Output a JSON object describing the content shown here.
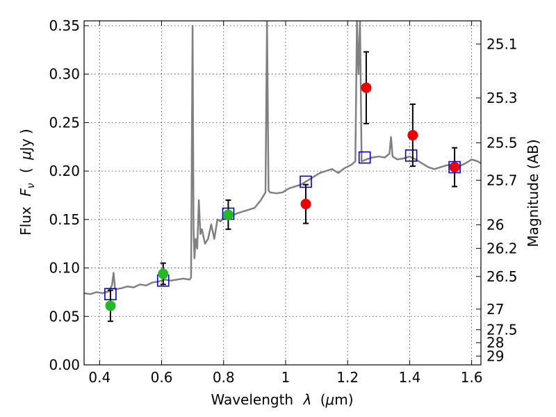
{
  "chart_data": {
    "type": "scatter",
    "xlabel": "Wavelength",
    "xlabel_lambda": "λ",
    "xlabel_unit_open": "(",
    "xlabel_unit_mu": "μ",
    "xlabel_unit_close": "m)",
    "ylabel": "Flux",
    "ylabel_sym": "F",
    "ylabel_sub": "ν",
    "ylabel_unit_open": "(",
    "ylabel_unit_mu": "μ",
    "ylabel_unit_close": "Jy )",
    "y2label": "Magnitude (AB)",
    "xlim": [
      0.35,
      1.63
    ],
    "ylim": [
      0.0,
      0.355
    ],
    "grid": true,
    "x_ticks": [
      {
        "value": 0.4,
        "label": "0.4"
      },
      {
        "value": 0.6,
        "label": "0.6"
      },
      {
        "value": 0.8,
        "label": "0.8"
      },
      {
        "value": 1.0,
        "label": "1"
      },
      {
        "value": 1.2,
        "label": "1.2"
      },
      {
        "value": 1.4,
        "label": "1.4"
      },
      {
        "value": 1.6,
        "label": "1.6"
      }
    ],
    "y_ticks": [
      {
        "value": 0.0,
        "label": "0.00"
      },
      {
        "value": 0.05,
        "label": "0.05"
      },
      {
        "value": 0.1,
        "label": "0.10"
      },
      {
        "value": 0.15,
        "label": "0.15"
      },
      {
        "value": 0.2,
        "label": "0.20"
      },
      {
        "value": 0.25,
        "label": "0.25"
      },
      {
        "value": 0.3,
        "label": "0.30"
      },
      {
        "value": 0.35,
        "label": "0.35"
      }
    ],
    "y2_ticks": [
      {
        "label": "25.1",
        "mag": 25.1
      },
      {
        "label": "25.3",
        "mag": 25.3
      },
      {
        "label": "25.5",
        "mag": 25.5
      },
      {
        "label": "25.7",
        "mag": 25.7
      },
      {
        "label": "26",
        "mag": 26.0
      },
      {
        "label": "26.2",
        "mag": 26.2
      },
      {
        "label": "26.5",
        "mag": 26.5
      },
      {
        "label": "27",
        "mag": 27.0
      },
      {
        "label": "27.5",
        "mag": 27.5
      },
      {
        "label": "28",
        "mag": 28.0
      },
      {
        "label": "29",
        "mag": 29.0
      }
    ],
    "series": [
      {
        "kind": "spectrum",
        "color": "#808080",
        "points": [
          [
            0.35,
            0.074
          ],
          [
            0.37,
            0.073
          ],
          [
            0.39,
            0.075
          ],
          [
            0.41,
            0.074
          ],
          [
            0.43,
            0.076
          ],
          [
            0.44,
            0.082
          ],
          [
            0.445,
            0.095
          ],
          [
            0.45,
            0.078
          ],
          [
            0.47,
            0.079
          ],
          [
            0.49,
            0.081
          ],
          [
            0.51,
            0.08
          ],
          [
            0.53,
            0.083
          ],
          [
            0.55,
            0.082
          ],
          [
            0.57,
            0.085
          ],
          [
            0.59,
            0.086
          ],
          [
            0.61,
            0.088
          ],
          [
            0.63,
            0.087
          ],
          [
            0.65,
            0.088
          ],
          [
            0.67,
            0.089
          ],
          [
            0.69,
            0.088
          ],
          [
            0.695,
            0.09
          ],
          [
            0.7,
            0.35
          ],
          [
            0.703,
            0.14
          ],
          [
            0.706,
            0.11
          ],
          [
            0.71,
            0.13
          ],
          [
            0.715,
            0.12
          ],
          [
            0.72,
            0.17
          ],
          [
            0.725,
            0.135
          ],
          [
            0.73,
            0.14
          ],
          [
            0.74,
            0.125
          ],
          [
            0.75,
            0.13
          ],
          [
            0.76,
            0.145
          ],
          [
            0.77,
            0.13
          ],
          [
            0.78,
            0.15
          ],
          [
            0.79,
            0.148
          ],
          [
            0.8,
            0.152
          ],
          [
            0.82,
            0.153
          ],
          [
            0.84,
            0.156
          ],
          [
            0.86,
            0.158
          ],
          [
            0.88,
            0.16
          ],
          [
            0.9,
            0.162
          ],
          [
            0.92,
            0.17
          ],
          [
            0.935,
            0.178
          ],
          [
            0.94,
            0.355
          ],
          [
            0.945,
            0.18
          ],
          [
            0.95,
            0.178
          ],
          [
            0.97,
            0.177
          ],
          [
            0.99,
            0.178
          ],
          [
            1.01,
            0.182
          ],
          [
            1.03,
            0.184
          ],
          [
            1.05,
            0.186
          ],
          [
            1.07,
            0.19
          ],
          [
            1.09,
            0.194
          ],
          [
            1.11,
            0.198
          ],
          [
            1.13,
            0.2
          ],
          [
            1.15,
            0.202
          ],
          [
            1.17,
            0.198
          ],
          [
            1.19,
            0.203
          ],
          [
            1.21,
            0.206
          ],
          [
            1.225,
            0.21
          ],
          [
            1.23,
            0.355
          ],
          [
            1.235,
            0.3
          ],
          [
            1.24,
            0.355
          ],
          [
            1.245,
            0.21
          ],
          [
            1.26,
            0.212
          ],
          [
            1.28,
            0.214
          ],
          [
            1.3,
            0.215
          ],
          [
            1.32,
            0.214
          ],
          [
            1.335,
            0.218
          ],
          [
            1.34,
            0.235
          ],
          [
            1.345,
            0.215
          ],
          [
            1.36,
            0.212
          ],
          [
            1.38,
            0.213
          ],
          [
            1.4,
            0.215
          ],
          [
            1.42,
            0.212
          ],
          [
            1.44,
            0.208
          ],
          [
            1.46,
            0.204
          ],
          [
            1.48,
            0.202
          ],
          [
            1.5,
            0.204
          ],
          [
            1.52,
            0.206
          ],
          [
            1.54,
            0.207
          ],
          [
            1.56,
            0.205
          ],
          [
            1.58,
            0.208
          ],
          [
            1.6,
            0.212
          ],
          [
            1.62,
            0.21
          ],
          [
            1.63,
            0.208
          ]
        ]
      },
      {
        "kind": "model_squares",
        "color": "#0000cc",
        "x": [
          0.435,
          0.605,
          0.815,
          1.065,
          1.255,
          1.405,
          1.545
        ],
        "y": [
          0.073,
          0.087,
          0.156,
          0.189,
          0.214,
          0.216,
          0.204
        ]
      },
      {
        "kind": "observed_optical",
        "color": "#22bb22",
        "x": [
          0.435,
          0.605,
          0.815
        ],
        "y": [
          0.061,
          0.094,
          0.155
        ],
        "err": [
          0.016,
          0.011,
          0.015
        ]
      },
      {
        "kind": "observed_nir",
        "color": "#ee0000",
        "x": [
          1.065,
          1.26,
          1.41,
          1.545
        ],
        "y": [
          0.166,
          0.286,
          0.237,
          0.204
        ],
        "err": [
          0.02,
          0.037,
          0.032,
          0.02
        ]
      }
    ]
  }
}
